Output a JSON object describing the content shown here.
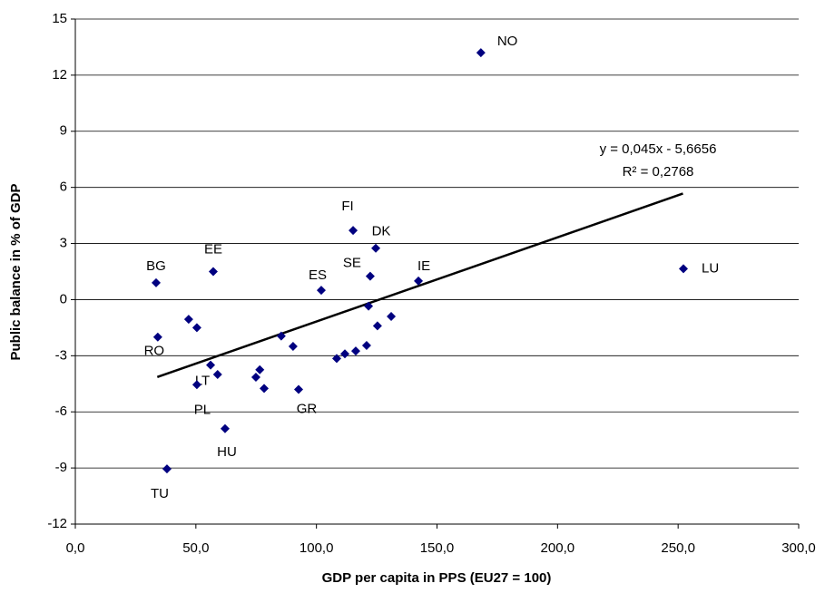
{
  "chart_data": {
    "type": "scatter",
    "color": "#000080",
    "x_label": "GDP per capita in PPS (EU27 = 100)",
    "y_label": "Public balance in % of GDP",
    "xlim": [
      0,
      300
    ],
    "ylim": [
      -12,
      15
    ],
    "xticks": [
      {
        "value": 0,
        "label": "0,0"
      },
      {
        "value": 50,
        "label": "50,0"
      },
      {
        "value": 100,
        "label": "100,0"
      },
      {
        "value": 150,
        "label": "150,0"
      },
      {
        "value": 200,
        "label": "200,0"
      },
      {
        "value": 250,
        "label": "250,0"
      },
      {
        "value": 300,
        "label": "300,0"
      }
    ],
    "yticks": [
      -12,
      -9,
      -6,
      -3,
      0,
      3,
      6,
      9,
      12,
      15
    ],
    "grid": true,
    "x": [
      168.2,
      252.2,
      33.5,
      57.2,
      115.2,
      124.6,
      122.3,
      102,
      142.3,
      34.2,
      56.1,
      50.4,
      62.1,
      38,
      92.6,
      47,
      50.4,
      59,
      74.9,
      76.5,
      78.3,
      85.4,
      90.3,
      108.4,
      111.8,
      116.3,
      120.8,
      121.6,
      125.3,
      131
    ],
    "values": [
      13.2,
      1.65,
      0.9,
      1.5,
      3.7,
      2.75,
      1.25,
      0.5,
      1.0,
      -2.0,
      -3.5,
      -4.55,
      -6.9,
      -9.05,
      -4.8,
      -1.05,
      -1.5,
      -4.0,
      -4.15,
      -3.75,
      -4.75,
      -1.95,
      -2.5,
      -3.15,
      -2.9,
      -2.75,
      -2.45,
      -0.35,
      -1.4,
      -0.9
    ],
    "labels": [
      "NO",
      "LU",
      "BG",
      "EE",
      "FI",
      "DK",
      "SE",
      "ES",
      "IE",
      "RO",
      "LT",
      "PL",
      "HU",
      "TU",
      "GR",
      null,
      null,
      null,
      null,
      null,
      null,
      null,
      null,
      null,
      null,
      null,
      null,
      null,
      null,
      null
    ],
    "trendline": {
      "x": [
        34,
        252
      ],
      "y": [
        -4.14,
        5.67
      ],
      "color": "#000000"
    },
    "annotations": [
      "y = 0,045x - 5,6656",
      "R² = 0,2768"
    ]
  }
}
